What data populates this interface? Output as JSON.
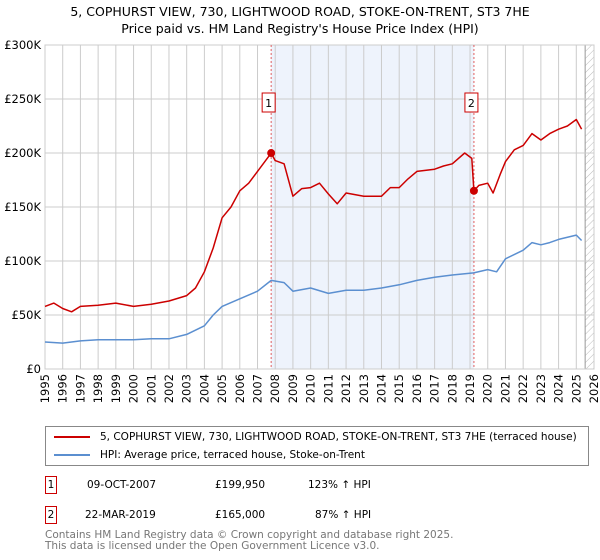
{
  "title": "5, COPHURST VIEW, 730, LIGHTWOOD ROAD, STOKE-ON-TRENT, ST3 7HE",
  "subtitle": "Price paid vs. HM Land Registry's House Price Index (HPI)",
  "colors": {
    "property": "#cc0000",
    "hpi": "#5b8fd0",
    "shade": "#eef3fc",
    "grid": "#cccccc"
  },
  "chart_data": {
    "type": "line",
    "ylim": [
      0,
      300000
    ],
    "xlim": [
      1995,
      2026
    ],
    "yticks": [
      0,
      50000,
      100000,
      150000,
      200000,
      250000,
      300000
    ],
    "ytick_labels": [
      "£0",
      "£50K",
      "£100K",
      "£150K",
      "£200K",
      "£250K",
      "£300K"
    ],
    "xtick_labels": [
      "1995",
      "1996",
      "1997",
      "1998",
      "1999",
      "2000",
      "2001",
      "2002",
      "2003",
      "2004",
      "2005",
      "2006",
      "2007",
      "2008",
      "2009",
      "2010",
      "2011",
      "2012",
      "2013",
      "2014",
      "2015",
      "2016",
      "2017",
      "2018",
      "2019",
      "2020",
      "2021",
      "2022",
      "2023",
      "2024",
      "2025",
      "2026"
    ],
    "shaded_range": [
      2007.77,
      2019.22
    ],
    "hatched_from": 2025.5,
    "series": [
      {
        "name": "5, COPHURST VIEW, 730, LIGHTWOOD ROAD, STOKE-ON-TRENT, ST3 7HE (terraced house)",
        "x": [
          1995,
          1995.5,
          1996,
          1996.5,
          1997,
          1998,
          1999,
          2000,
          2001,
          2002,
          2003,
          2003.5,
          2004,
          2004.5,
          2005,
          2005.5,
          2006,
          2006.5,
          2007,
          2007.77,
          2008,
          2008.5,
          2009,
          2009.5,
          2010,
          2010.5,
          2011,
          2011.5,
          2012,
          2013,
          2014,
          2014.5,
          2015,
          2015.5,
          2016,
          2017,
          2017.5,
          2018,
          2018.7,
          2019.1,
          2019.22,
          2019.5,
          2020,
          2020.3,
          2020.7,
          2021,
          2021.5,
          2022,
          2022.5,
          2023,
          2023.5,
          2024,
          2024.5,
          2025,
          2025.3
        ],
        "values": [
          58000,
          61000,
          56000,
          53000,
          58000,
          59000,
          61000,
          58000,
          60000,
          63000,
          68000,
          75000,
          90000,
          112000,
          140000,
          150000,
          165000,
          172000,
          183000,
          199950,
          193000,
          190000,
          160000,
          167000,
          168000,
          172000,
          162000,
          153000,
          163000,
          160000,
          160000,
          168000,
          168000,
          176000,
          183000,
          185000,
          188000,
          190000,
          200000,
          195000,
          165000,
          170000,
          172000,
          163000,
          180000,
          192000,
          203000,
          207000,
          218000,
          212000,
          218000,
          222000,
          225000,
          231000,
          222000
        ]
      },
      {
        "name": "HPI: Average price, terraced house, Stoke-on-Trent",
        "x": [
          1995,
          1996,
          1997,
          1998,
          1999,
          2000,
          2001,
          2002,
          2003,
          2004,
          2004.5,
          2005,
          2006,
          2007,
          2007.77,
          2008.5,
          2009,
          2010,
          2011,
          2012,
          2013,
          2014,
          2015,
          2016,
          2017,
          2018,
          2019.2,
          2020,
          2020.5,
          2021,
          2022,
          2022.5,
          2023,
          2023.5,
          2024,
          2025,
          2025.3
        ],
        "values": [
          25000,
          24000,
          26000,
          27000,
          27000,
          27000,
          28000,
          28000,
          32000,
          40000,
          50000,
          58000,
          65000,
          72000,
          82000,
          80000,
          72000,
          75000,
          70000,
          73000,
          73000,
          75000,
          78000,
          82000,
          85000,
          87000,
          89000,
          92000,
          90000,
          102000,
          110000,
          117000,
          115000,
          117000,
          120000,
          124000,
          119000
        ]
      }
    ],
    "annotations": [
      {
        "label": "1",
        "x": 2007.77,
        "value": 199950
      },
      {
        "label": "2",
        "x": 2019.22,
        "value": 165000
      }
    ]
  },
  "legend": {
    "property": "5, COPHURST VIEW, 730, LIGHTWOOD ROAD, STOKE-ON-TRENT, ST3 7HE (terraced house)",
    "hpi": "HPI: Average price, terraced house, Stoke-on-Trent"
  },
  "transactions": [
    {
      "num": "1",
      "date": "09-OCT-2007",
      "price": "£199,950",
      "hpi": "123% ↑ HPI"
    },
    {
      "num": "2",
      "date": "22-MAR-2019",
      "price": "£165,000",
      "hpi": "87% ↑ HPI"
    }
  ],
  "footer": {
    "line1": "Contains HM Land Registry data © Crown copyright and database right 2025.",
    "line2": "This data is licensed under the Open Government Licence v3.0."
  }
}
